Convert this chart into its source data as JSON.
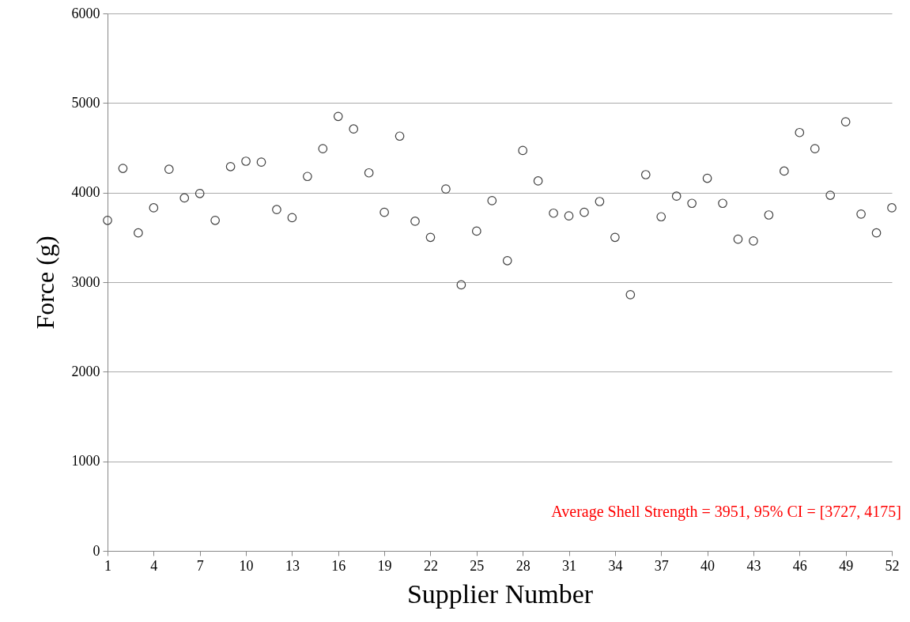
{
  "chart_data": {
    "type": "scatter",
    "xlabel": "Supplier Number",
    "ylabel": "Force (g)",
    "x": [
      1,
      2,
      3,
      4,
      5,
      6,
      7,
      8,
      9,
      10,
      11,
      12,
      13,
      14,
      15,
      16,
      17,
      18,
      19,
      20,
      21,
      22,
      23,
      24,
      25,
      26,
      27,
      28,
      29,
      30,
      31,
      32,
      33,
      34,
      35,
      36,
      37,
      38,
      39,
      40,
      41,
      42,
      43,
      44,
      45,
      46,
      47,
      48,
      49,
      50,
      51,
      52
    ],
    "series": [
      {
        "color": "#404040",
        "values": [
          3690,
          4270,
          3550,
          3830,
          4260,
          3940,
          3990,
          3690,
          4290,
          4350,
          4340,
          3810,
          3720,
          4180,
          4490,
          4850,
          4710,
          4220,
          3780,
          4630,
          3680,
          3500,
          4040,
          2970,
          3570,
          3910,
          3240,
          4470,
          4130,
          3770,
          3740,
          3780,
          3900,
          3500,
          2860,
          4200,
          3730,
          3960,
          3880,
          4160,
          3880,
          3480,
          3460,
          3750,
          4240,
          4670,
          4490,
          3970,
          4790,
          3760,
          3550,
          3830
        ]
      }
    ],
    "xlim": [
      1,
      52
    ],
    "xticks": [
      1,
      4,
      7,
      10,
      13,
      16,
      19,
      22,
      25,
      28,
      31,
      34,
      37,
      40,
      43,
      46,
      49,
      52
    ],
    "ylim": [
      0,
      6000
    ],
    "yticks": [
      0,
      1000,
      2000,
      3000,
      4000,
      5000,
      6000
    ],
    "grid": "y",
    "marker": "circle",
    "annotations": [
      "Average Shell Strength = 3951, 95% CI = [3727, 4175]"
    ]
  }
}
